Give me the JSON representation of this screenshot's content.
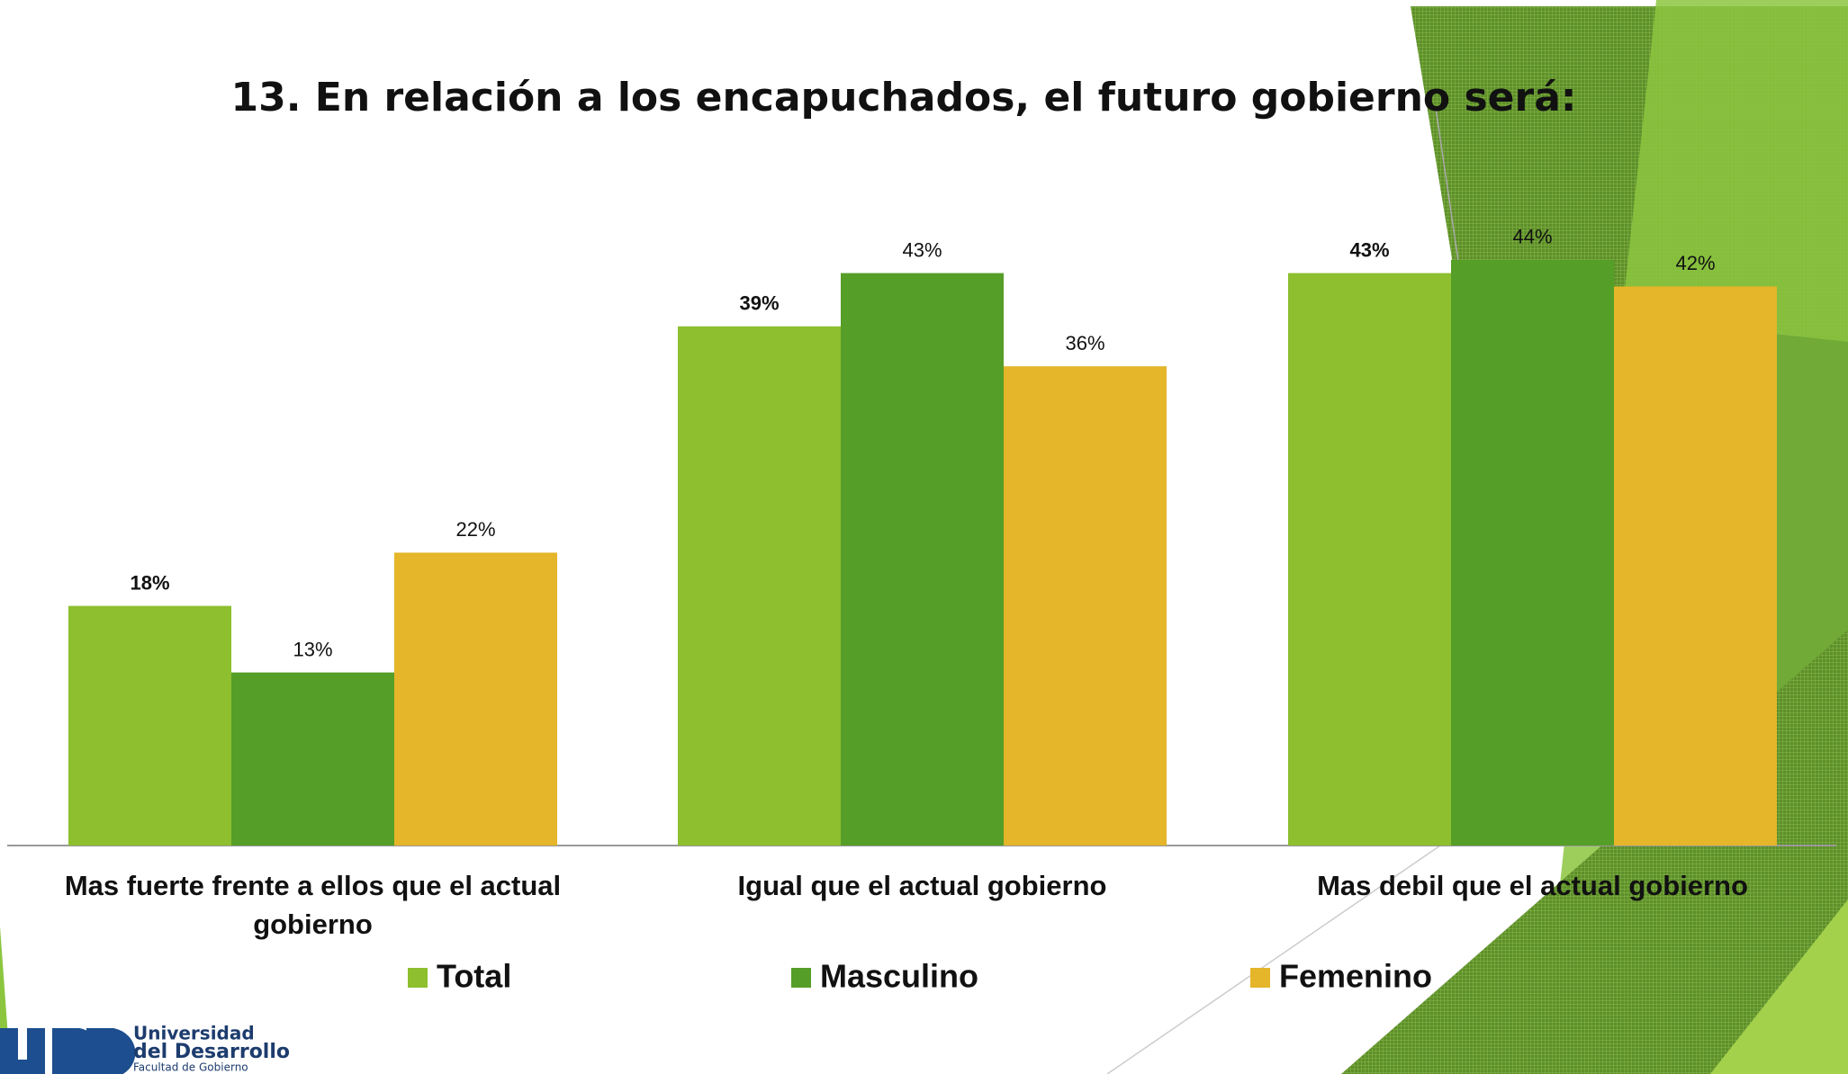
{
  "chart_data": {
    "type": "bar",
    "title": "13. En relación a los encapuchados, el futuro gobierno será:",
    "categories": [
      "Mas fuerte frente a ellos que el actual gobierno",
      "Igual que el actual gobierno",
      "Mas debil que el actual gobierno"
    ],
    "series": [
      {
        "name": "Total",
        "color": "#8dbf2e",
        "values": [
          18,
          39,
          43
        ],
        "value_labels": [
          "18%",
          "39%",
          "43%"
        ]
      },
      {
        "name": "Masculino",
        "color": "#559e27",
        "values": [
          13,
          43,
          44
        ],
        "value_labels": [
          "13%",
          "43%",
          "44%"
        ]
      },
      {
        "name": "Femenino",
        "color": "#e5b52a",
        "values": [
          22,
          36,
          42
        ],
        "value_labels": [
          "22%",
          "36%",
          "42%"
        ]
      }
    ],
    "ylim": [
      0,
      60
    ],
    "grid": false,
    "legend": "bottom"
  },
  "logo": {
    "line1": "Universidad",
    "line2": "del Desarrollo",
    "line3": "Facultad de Gobierno"
  }
}
